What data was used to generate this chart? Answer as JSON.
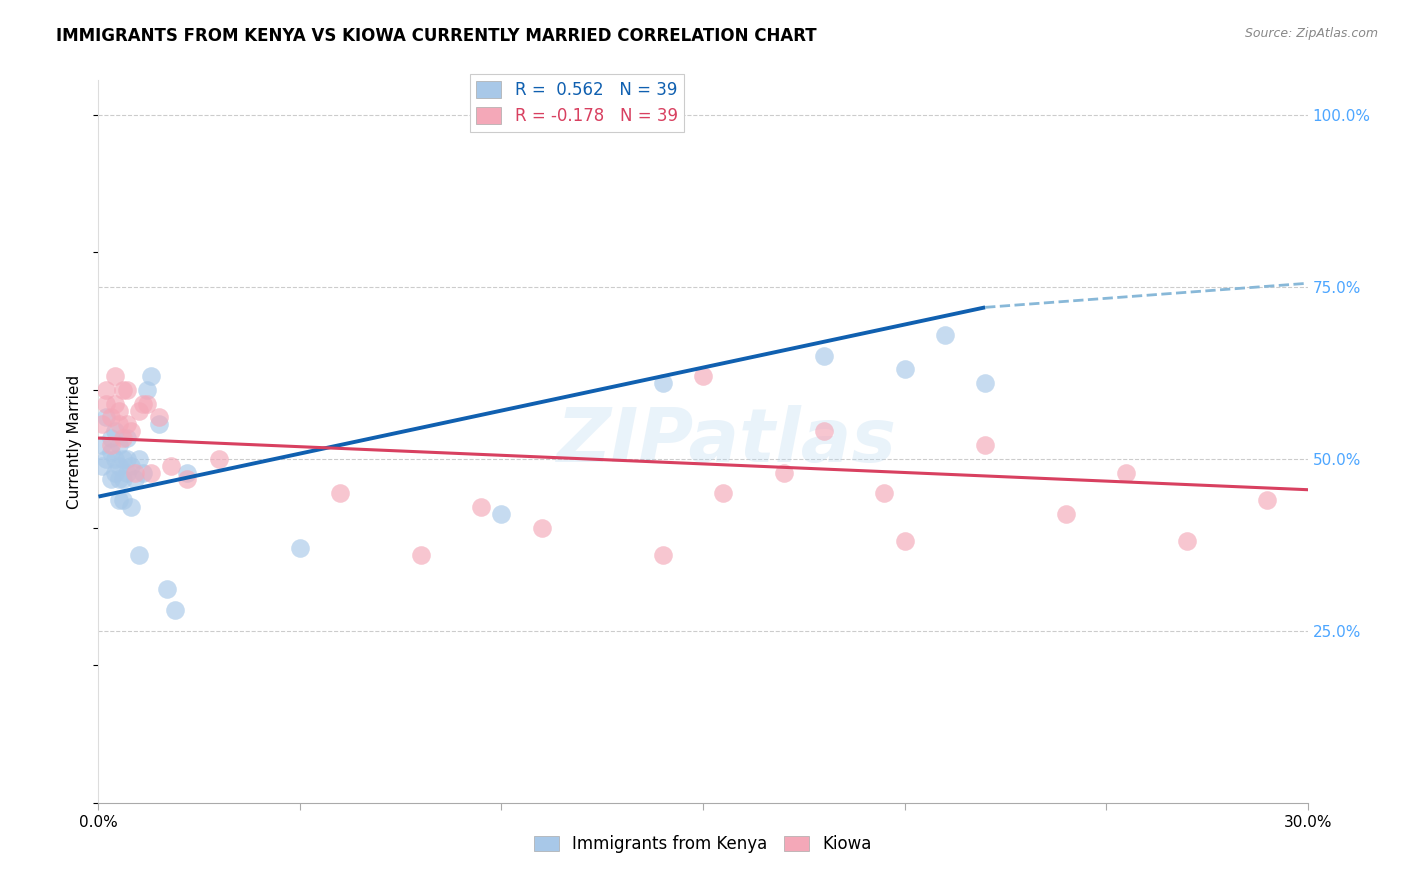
{
  "title": "IMMIGRANTS FROM KENYA VS KIOWA CURRENTLY MARRIED CORRELATION CHART",
  "source": "Source: ZipAtlas.com",
  "ylabel": "Currently Married",
  "xlim": [
    0.0,
    0.3
  ],
  "ylim": [
    0.0,
    1.05
  ],
  "ytick_values": [
    0.25,
    0.5,
    0.75,
    1.0
  ],
  "ytick_labels": [
    "25.0%",
    "50.0%",
    "75.0%",
    "100.0%"
  ],
  "legend_r1": "R =  0.562   N = 39",
  "legend_r2": "R = -0.178   N = 39",
  "kenya_scatter_color": "#a8c8e8",
  "kiowa_scatter_color": "#f4a8b8",
  "kenya_line_color": "#1060b0",
  "kenya_dash_color": "#88b8d8",
  "kiowa_line_color": "#d84060",
  "ytick_color": "#4da6ff",
  "grid_color": "#cccccc",
  "background_color": "#ffffff",
  "watermark": "ZIPatlas",
  "kenya_x": [
    0.001,
    0.001,
    0.002,
    0.002,
    0.003,
    0.003,
    0.003,
    0.004,
    0.004,
    0.004,
    0.005,
    0.005,
    0.005,
    0.005,
    0.006,
    0.006,
    0.006,
    0.007,
    0.007,
    0.007,
    0.008,
    0.008,
    0.009,
    0.01,
    0.01,
    0.011,
    0.012,
    0.013,
    0.015,
    0.017,
    0.019,
    0.022,
    0.05,
    0.1,
    0.14,
    0.18,
    0.2,
    0.21,
    0.22
  ],
  "kenya_y": [
    0.49,
    0.52,
    0.5,
    0.56,
    0.51,
    0.47,
    0.53,
    0.5,
    0.48,
    0.54,
    0.52,
    0.49,
    0.47,
    0.44,
    0.5,
    0.47,
    0.44,
    0.53,
    0.5,
    0.48,
    0.49,
    0.43,
    0.47,
    0.5,
    0.36,
    0.48,
    0.6,
    0.62,
    0.55,
    0.31,
    0.28,
    0.48,
    0.37,
    0.42,
    0.61,
    0.65,
    0.63,
    0.68,
    0.61
  ],
  "kiowa_x": [
    0.001,
    0.002,
    0.002,
    0.003,
    0.003,
    0.004,
    0.004,
    0.005,
    0.005,
    0.006,
    0.006,
    0.007,
    0.007,
    0.008,
    0.009,
    0.01,
    0.011,
    0.012,
    0.013,
    0.015,
    0.018,
    0.022,
    0.03,
    0.06,
    0.08,
    0.095,
    0.11,
    0.14,
    0.155,
    0.22,
    0.15,
    0.17,
    0.18,
    0.195,
    0.2,
    0.24,
    0.255,
    0.27,
    0.29
  ],
  "kiowa_y": [
    0.55,
    0.6,
    0.58,
    0.52,
    0.56,
    0.62,
    0.58,
    0.57,
    0.55,
    0.6,
    0.53,
    0.55,
    0.6,
    0.54,
    0.48,
    0.57,
    0.58,
    0.58,
    0.48,
    0.56,
    0.49,
    0.47,
    0.5,
    0.45,
    0.36,
    0.43,
    0.4,
    0.36,
    0.45,
    0.52,
    0.62,
    0.48,
    0.54,
    0.45,
    0.38,
    0.42,
    0.48,
    0.38,
    0.44
  ]
}
